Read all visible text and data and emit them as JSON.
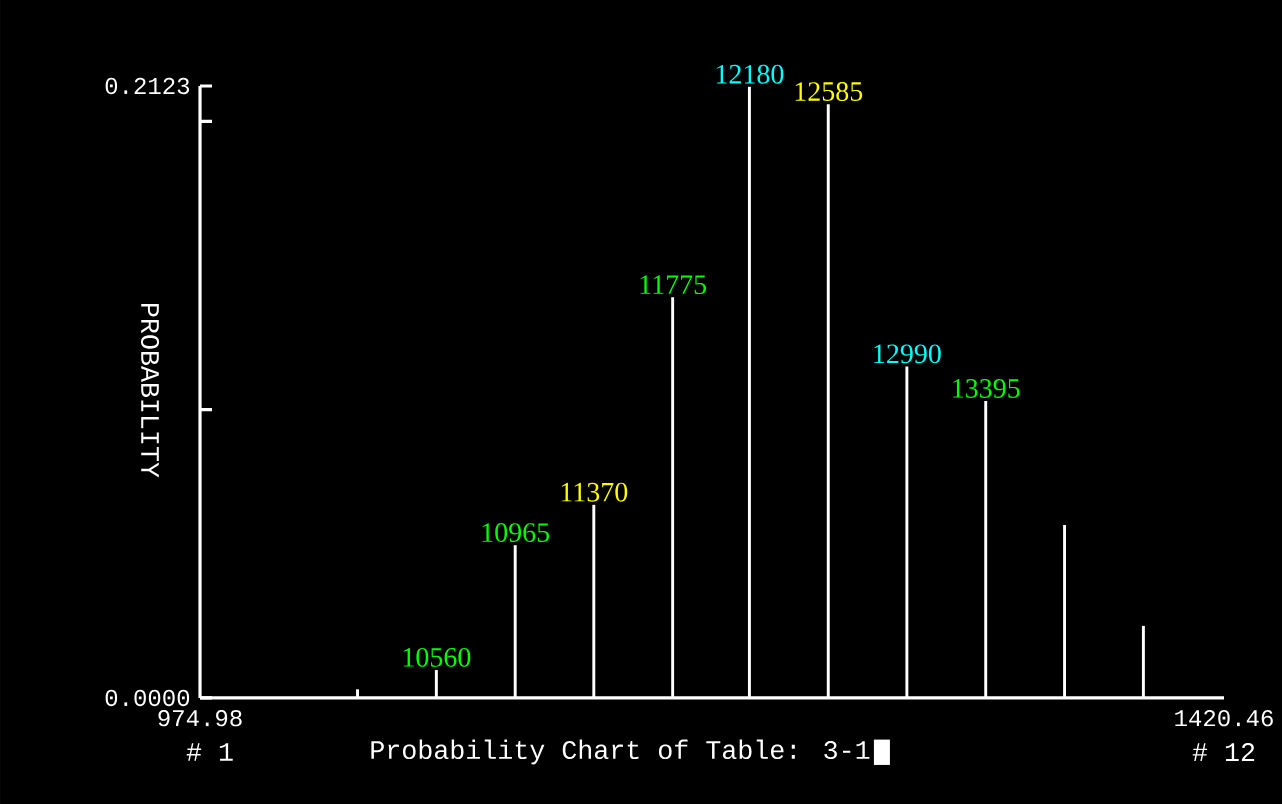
{
  "chart_data": {
    "type": "bar",
    "title": "Probability Chart of Table: 3-1",
    "ylabel": "PROBABILITY",
    "color": "#ffffff",
    "x": [
      1043.5,
      1077.8,
      1112.1,
      1146.3,
      1180.6,
      1214.0,
      1248.3,
      1282.5,
      1316.8,
      1351.1,
      1385.4
    ],
    "values": [
      0.003,
      0.0097,
      0.053,
      0.067,
      0.139,
      0.212,
      0.206,
      0.115,
      0.103,
      0.06,
      0.025
    ],
    "xlim": [
      974.98,
      1420.46
    ],
    "xticks": [
      974.98,
      1420.46
    ],
    "ylim": [
      0,
      0.2123
    ],
    "yticks": [
      {
        "value": 0,
        "label": "0.0000"
      },
      {
        "value": 0.1,
        "label": null
      },
      {
        "value": 0.2,
        "label": null
      },
      0.2123
    ],
    "annotations": [
      {
        "text": "10560",
        "x": 1077.8,
        "y": 0.0097
      },
      {
        "text": "10965",
        "x": 1112.1,
        "y": 0.053
      },
      {
        "text": "11370",
        "x": 1146.3,
        "y": 0.067
      },
      {
        "text": "11775",
        "x": 1180.6,
        "y": 0.139
      },
      {
        "text": "12180",
        "x": 1214.0,
        "y": 0.212
      },
      {
        "text": "12585",
        "x": 1248.3,
        "y": 0.206
      },
      {
        "text": "12990",
        "x": 1282.5,
        "y": 0.115
      },
      {
        "text": "13395",
        "x": 1316.8,
        "y": 0.103
      },
      "# 1",
      "# 12"
    ]
  }
}
